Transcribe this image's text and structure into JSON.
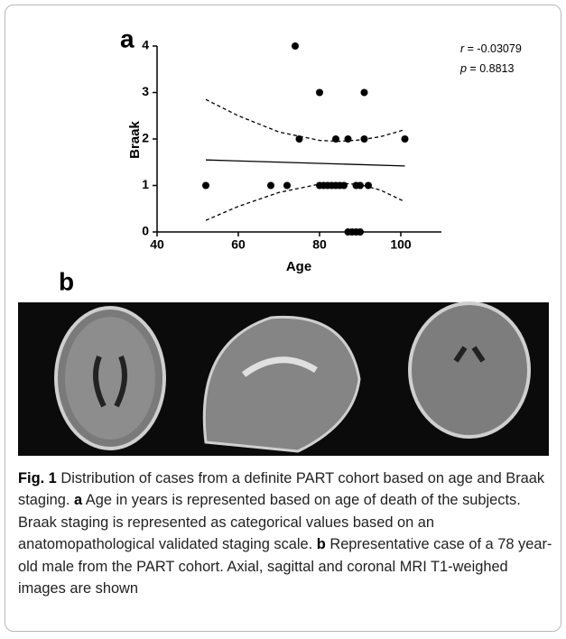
{
  "chart_data": {
    "type": "scatter",
    "panel_label": "a",
    "xlabel": "Age",
    "ylabel": "Braak",
    "x": [
      52,
      68,
      72,
      74,
      75,
      80,
      80,
      81,
      82,
      83,
      84,
      84,
      85,
      86,
      87,
      87,
      88,
      89,
      89,
      90,
      90,
      91,
      91,
      92,
      101
    ],
    "values": [
      1,
      1,
      1,
      4,
      2,
      3,
      1,
      1,
      1,
      1,
      1,
      2,
      1,
      1,
      2,
      0,
      0,
      0,
      1,
      0,
      1,
      3,
      2,
      1,
      2
    ],
    "color": "#000000",
    "fit": {
      "x": [
        52,
        101
      ],
      "values": [
        1.55,
        1.42
      ]
    },
    "upper_band": {
      "x": [
        52,
        60,
        70,
        80,
        85,
        90,
        95,
        101
      ],
      "values": [
        2.85,
        2.5,
        2.15,
        1.97,
        1.95,
        1.98,
        2.05,
        2.2
      ]
    },
    "lower_band": {
      "x": [
        52,
        60,
        70,
        80,
        85,
        90,
        95,
        101
      ],
      "values": [
        0.25,
        0.55,
        0.85,
        1.03,
        1.05,
        1.02,
        0.9,
        0.65
      ]
    },
    "xlim": [
      40,
      110
    ],
    "ylim": [
      0,
      4
    ],
    "xticks": [
      40,
      60,
      80,
      100
    ],
    "yticks": [
      0,
      1,
      2,
      3,
      4
    ],
    "annotations": [
      {
        "symbol": "r",
        "text": " = -0.03079"
      },
      {
        "symbol": "p",
        "text": " = 0.8813"
      }
    ]
  },
  "panel_b": {
    "label": "b"
  },
  "caption": {
    "label": "Fig. 1",
    "intro": "Distribution of cases from a definite PART cohort based on age and Braak staging.",
    "a_label": "a",
    "a_text": "Age in years is represented based on age of death of the subjects. Braak staging is represented as categorical values based on an anatomopathological validated staging scale.",
    "b_label": "b",
    "b_text": "Representative case of a 78 year-old male from the PART cohort. Axial, sagittal and coronal MRI T1-weighed images are shown"
  }
}
